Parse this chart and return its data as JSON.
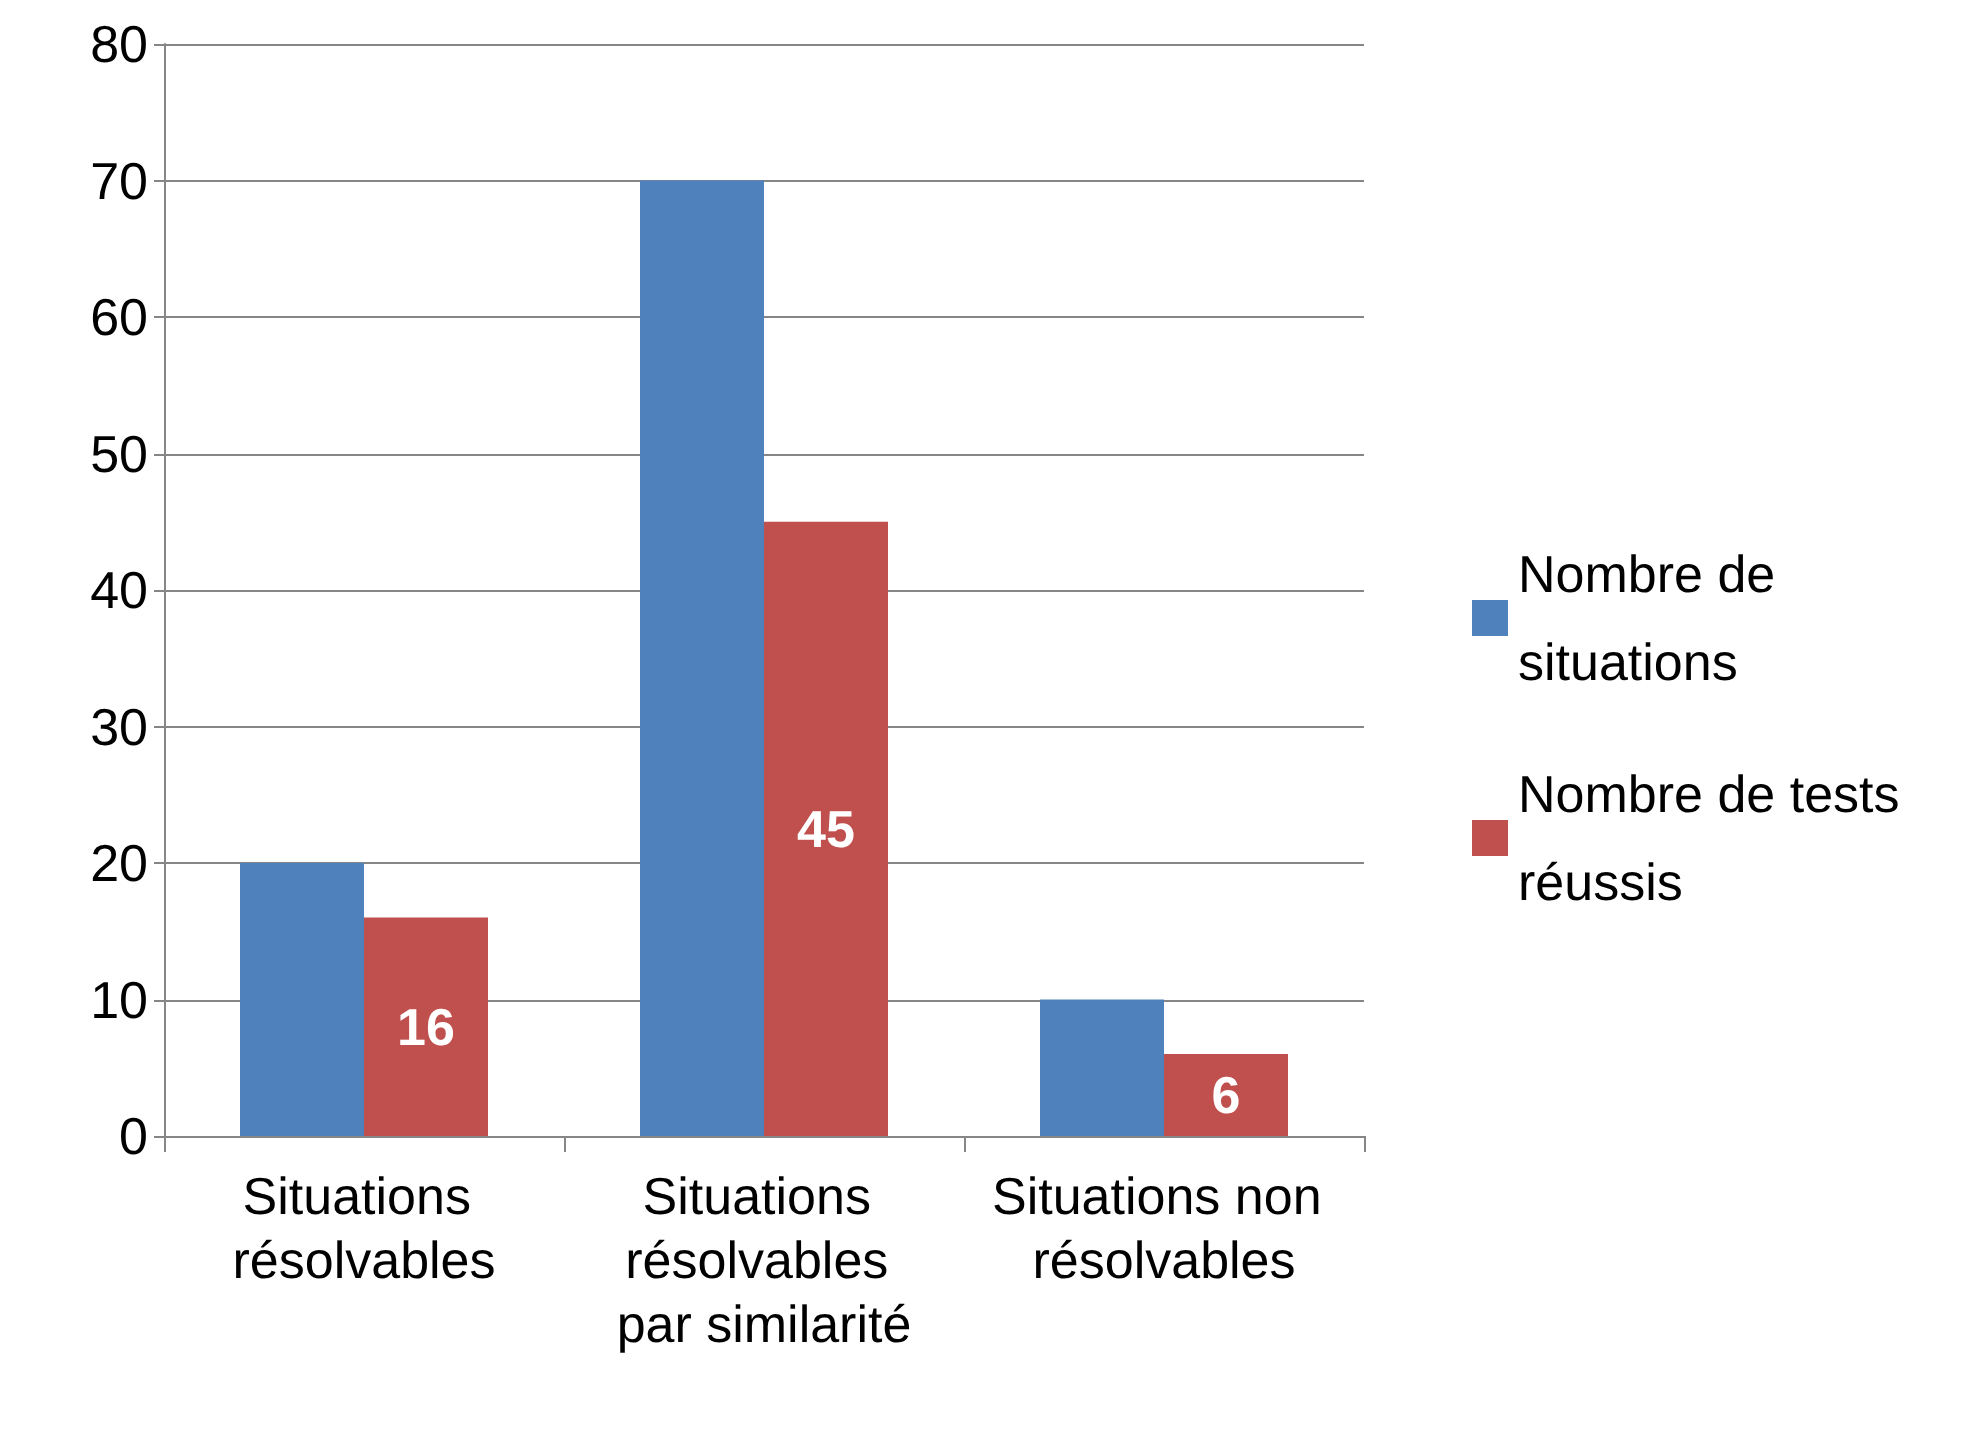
{
  "chart_data": {
    "type": "bar",
    "categories": [
      "Situations résolvables",
      "Situations résolvables par similarité",
      "Situations non résolvables"
    ],
    "series": [
      {
        "name": "Nombre de situations",
        "color": "#4f81bd",
        "values": [
          20,
          70,
          10
        ]
      },
      {
        "name": "Nombre de tests réussis",
        "color": "#c0504d",
        "values": [
          16,
          45,
          6
        ],
        "value_labels": [
          "16",
          "45",
          "6"
        ]
      }
    ],
    "ylim": [
      0,
      80
    ],
    "yticks": [
      0,
      10,
      20,
      30,
      40,
      50,
      60,
      70,
      80
    ],
    "grid": "y",
    "legend": "right"
  }
}
